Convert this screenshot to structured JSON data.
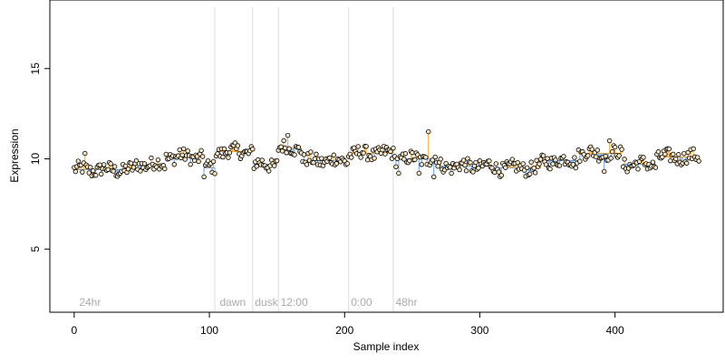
{
  "chart_data": {
    "type": "scatter",
    "xlabel": "Sample index",
    "ylabel": "Expression",
    "xlim": [
      -18,
      480
    ],
    "ylim": [
      1.5,
      18.8
    ],
    "x_ticks": [
      0,
      100,
      200,
      300,
      400
    ],
    "y_ticks": [
      5,
      10,
      15
    ],
    "baseline": 10.1,
    "above_color": "#FFA726",
    "below_color": "#64A0E6",
    "point_fill": "#F5E6C8",
    "point_stroke": "#000000",
    "phase_lines": [
      104,
      132,
      151,
      203,
      236
    ],
    "phase_labels": [
      {
        "x": 3,
        "text": "24hr"
      },
      {
        "x": 107,
        "text": "dawn"
      },
      {
        "x": 133,
        "text": "dusk"
      },
      {
        "x": 152,
        "text": "12:00"
      },
      {
        "x": 204,
        "text": "0:00"
      },
      {
        "x": 237,
        "text": "48hr"
      }
    ],
    "segments": [
      {
        "from": 0,
        "to": 45,
        "level": 9.4
      },
      {
        "from": 46,
        "to": 67,
        "level": 9.7
      },
      {
        "from": 68,
        "to": 95,
        "level": 10.1
      },
      {
        "from": 96,
        "to": 104,
        "level": 9.5
      },
      {
        "from": 105,
        "to": 132,
        "level": 10.4
      },
      {
        "from": 133,
        "to": 150,
        "level": 9.7
      },
      {
        "from": 151,
        "to": 168,
        "level": 10.6
      },
      {
        "from": 169,
        "to": 202,
        "level": 9.9
      },
      {
        "from": 203,
        "to": 236,
        "level": 10.3
      },
      {
        "from": 237,
        "to": 268,
        "level": 10.0
      },
      {
        "from": 269,
        "to": 310,
        "level": 9.6
      },
      {
        "from": 311,
        "to": 345,
        "level": 9.5
      },
      {
        "from": 346,
        "to": 372,
        "level": 9.9
      },
      {
        "from": 373,
        "to": 405,
        "level": 10.3
      },
      {
        "from": 406,
        "to": 430,
        "level": 9.7
      },
      {
        "from": 431,
        "to": 462,
        "level": 10.1
      }
    ],
    "outliers": [
      {
        "x": 8,
        "y": 10.3
      },
      {
        "x": 78,
        "y": 10.5
      },
      {
        "x": 96,
        "y": 9.0
      },
      {
        "x": 158,
        "y": 11.3
      },
      {
        "x": 240,
        "y": 9.2
      },
      {
        "x": 255,
        "y": 9.2
      },
      {
        "x": 262,
        "y": 11.5
      },
      {
        "x": 266,
        "y": 9.0
      },
      {
        "x": 392,
        "y": 9.3
      },
      {
        "x": 396,
        "y": 11.0
      }
    ]
  }
}
